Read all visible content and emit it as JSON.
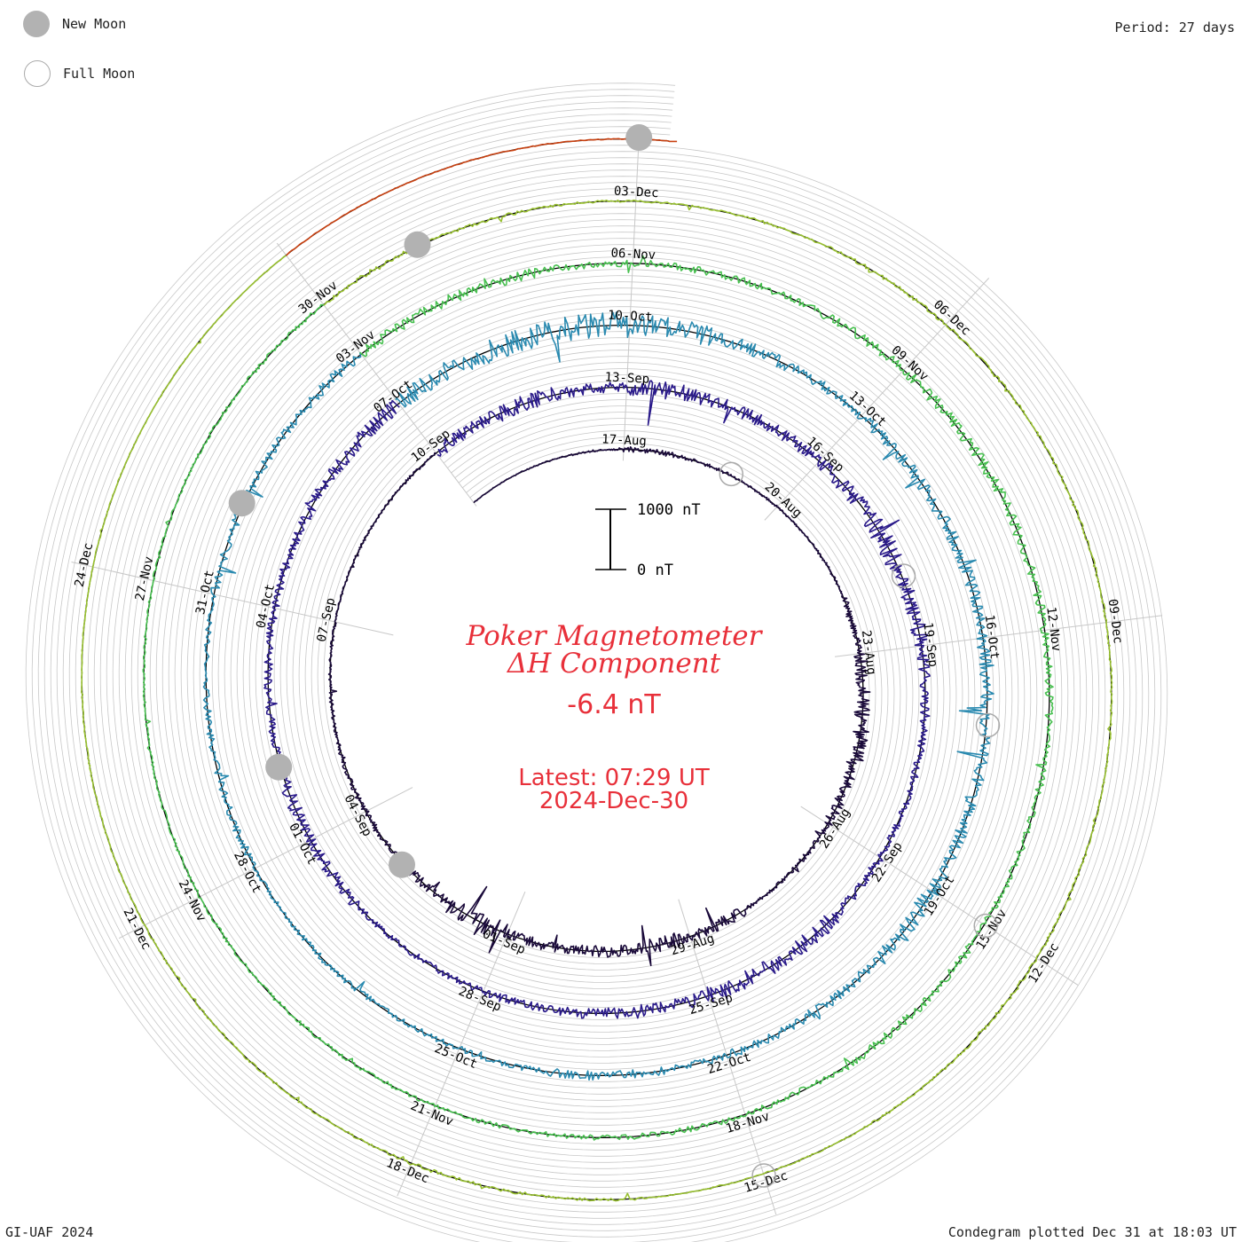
{
  "legend": {
    "new_moon_label": "New Moon",
    "full_moon_label": "Full Moon"
  },
  "header": {
    "period": "Period: 27 days"
  },
  "footer": {
    "credit": "GI-UAF 2024",
    "plotted": "Condegram plotted Dec 31 at 18:03 UT"
  },
  "center": {
    "title_line1": "Poker Magnetometer",
    "title_line2": "ΔH Component",
    "current_value": "-6.4 nT",
    "latest_line1": "Latest: 07:29 UT",
    "latest_line2": "2024-Dec-30",
    "scale_top_label": "1000 nT",
    "scale_bottom_label": "0 nT"
  },
  "colors": {
    "title": "#e8303a",
    "ring": "#000000",
    "grid": "#c8c8c8",
    "moon_new": "#b2b2b2",
    "moon_full": "#aaaaaa"
  },
  "chart_data": {
    "type": "line",
    "layout": "spiral condegram",
    "period_days": 27,
    "start_date": "2024-08-14",
    "end_date": "2024-12-30",
    "scale_bar_nT": [
      0,
      1000
    ],
    "date_ticks": [
      {
        "label": "17-Aug",
        "day": 3
      },
      {
        "label": "20-Aug",
        "day": 6
      },
      {
        "label": "23-Aug",
        "day": 9
      },
      {
        "label": "26-Aug",
        "day": 12
      },
      {
        "label": "29-Aug",
        "day": 15
      },
      {
        "label": "01-Sep",
        "day": 18
      },
      {
        "label": "04-Sep",
        "day": 21
      },
      {
        "label": "07-Sep",
        "day": 24
      },
      {
        "label": "10-Sep",
        "day": 27
      },
      {
        "label": "13-Sep",
        "day": 30
      },
      {
        "label": "16-Sep",
        "day": 33
      },
      {
        "label": "19-Sep",
        "day": 36
      },
      {
        "label": "22-Sep",
        "day": 39
      },
      {
        "label": "25-Sep",
        "day": 42
      },
      {
        "label": "28-Sep",
        "day": 45
      },
      {
        "label": "01-Oct",
        "day": 48
      },
      {
        "label": "04-Oct",
        "day": 51
      },
      {
        "label": "07-Oct",
        "day": 54
      },
      {
        "label": "10-Oct",
        "day": 57
      },
      {
        "label": "13-Oct",
        "day": 60
      },
      {
        "label": "16-Oct",
        "day": 63
      },
      {
        "label": "19-Oct",
        "day": 66
      },
      {
        "label": "22-Oct",
        "day": 69
      },
      {
        "label": "25-Oct",
        "day": 72
      },
      {
        "label": "28-Oct",
        "day": 75
      },
      {
        "label": "31-Oct",
        "day": 78
      },
      {
        "label": "03-Nov",
        "day": 81
      },
      {
        "label": "06-Nov",
        "day": 84
      },
      {
        "label": "09-Nov",
        "day": 87
      },
      {
        "label": "12-Nov",
        "day": 90
      },
      {
        "label": "15-Nov",
        "day": 93
      },
      {
        "label": "18-Nov",
        "day": 96
      },
      {
        "label": "21-Nov",
        "day": 99
      },
      {
        "label": "24-Nov",
        "day": 102
      },
      {
        "label": "27-Nov",
        "day": 105
      },
      {
        "label": "30-Nov",
        "day": 108
      },
      {
        "label": "03-Dec",
        "day": 111
      },
      {
        "label": "06-Dec",
        "day": 114
      },
      {
        "label": "09-Dec",
        "day": 117
      },
      {
        "label": "12-Dec",
        "day": 120
      },
      {
        "label": "15-Dec",
        "day": 123
      },
      {
        "label": "18-Dec",
        "day": 126
      },
      {
        "label": "21-Dec",
        "day": 129
      },
      {
        "label": "24-Dec",
        "day": 132
      }
    ],
    "new_moons": [
      "2024-09-03",
      "2024-10-02",
      "2024-11-01",
      "2024-12-01",
      "2024-12-30"
    ],
    "full_moons": [
      "2024-08-19",
      "2024-09-18",
      "2024-10-17",
      "2024-11-15",
      "2024-12-15"
    ],
    "series_colors": [
      "#1a0a3a",
      "#2a1a8a",
      "#2a4ac0",
      "#2a8ab0",
      "#2ab0a0",
      "#48c050",
      "#98c030",
      "#c0b020",
      "#c84010",
      "#a01010"
    ],
    "activity_by_day_nT": [
      20,
      30,
      40,
      120,
      80,
      50,
      40,
      60,
      150,
      320,
      400,
      260,
      120,
      80,
      260,
      380,
      300,
      240,
      420,
      200,
      160,
      120,
      80,
      60,
      40,
      50,
      60,
      300,
      380,
      250,
      420,
      300,
      260,
      350,
      480,
      380,
      250,
      180,
      150,
      200,
      380,
      420,
      300,
      250,
      200,
      150,
      120,
      260,
      300,
      180,
      200,
      200,
      260,
      320,
      400,
      520,
      600,
      480,
      300,
      220,
      250,
      280,
      300,
      350,
      280,
      300,
      420,
      250,
      200,
      180,
      220,
      160,
      120,
      140,
      100,
      180,
      160,
      120,
      200,
      180,
      220,
      240,
      260,
      180,
      160,
      150,
      200,
      240,
      260,
      200,
      180,
      160,
      150,
      180,
      200,
      160,
      140,
      120,
      100,
      90,
      80,
      70,
      60,
      50,
      50,
      60,
      60,
      80,
      100,
      70,
      50,
      40,
      60,
      80,
      70,
      60,
      50,
      40,
      40,
      60,
      80,
      50,
      40,
      30,
      60,
      80,
      60,
      50,
      40,
      30,
      30,
      20,
      20,
      20
    ]
  }
}
